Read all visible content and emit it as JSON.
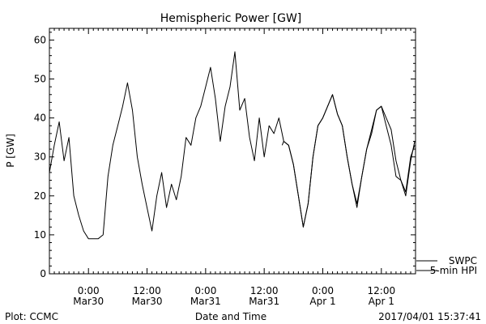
{
  "chart_data": {
    "type": "line",
    "title": "Hemispheric Power [GW]",
    "ylabel": "P [GW]",
    "xlabel": "Date and Time",
    "ylim": [
      0,
      63
    ],
    "yticks": [
      0,
      10,
      20,
      30,
      40,
      50,
      60
    ],
    "xlim": [
      "2017-03-29 16:00",
      "2017-04-01 19:00"
    ],
    "xticks": [
      {
        "t": "2017-03-30 00:00",
        "line1": "0:00",
        "line2": "Mar30"
      },
      {
        "t": "2017-03-30 12:00",
        "line1": "12:00",
        "line2": "Mar30"
      },
      {
        "t": "2017-03-31 00:00",
        "line1": "0:00",
        "line2": "Mar31"
      },
      {
        "t": "2017-03-31 12:00",
        "line1": "12:00",
        "line2": "Mar31"
      },
      {
        "t": "2017-04-01 00:00",
        "line1": "0:00",
        "line2": "Apr 1"
      },
      {
        "t": "2017-04-01 12:00",
        "line1": "12:00",
        "line2": "Apr 1"
      }
    ],
    "grid": false,
    "legend_position": "right",
    "series": [
      {
        "name": "SWPC",
        "style": "solid",
        "points": [
          [
            "2017-03-31 15:40",
            33
          ],
          [
            "2017-03-31 16:00",
            34
          ],
          [
            "2017-03-31 17:00",
            33
          ],
          [
            "2017-03-31 18:00",
            28
          ],
          [
            "2017-03-31 19:00",
            20
          ],
          [
            "2017-03-31 20:00",
            12
          ],
          [
            "2017-03-31 21:00",
            18
          ],
          [
            "2017-03-31 22:00",
            30
          ],
          [
            "2017-03-31 23:00",
            38
          ],
          [
            "2017-04-01 00:00",
            40
          ],
          [
            "2017-04-01 01:00",
            43
          ],
          [
            "2017-04-01 02:00",
            46
          ],
          [
            "2017-04-01 03:00",
            41
          ],
          [
            "2017-04-01 04:00",
            38
          ],
          [
            "2017-04-01 05:00",
            30
          ],
          [
            "2017-04-01 06:00",
            23
          ],
          [
            "2017-04-01 07:00",
            18
          ],
          [
            "2017-04-01 08:00",
            25
          ],
          [
            "2017-04-01 09:00",
            32
          ],
          [
            "2017-04-01 10:00",
            37
          ],
          [
            "2017-04-01 11:00",
            42
          ],
          [
            "2017-04-01 12:00",
            43
          ],
          [
            "2017-04-01 13:00",
            40
          ],
          [
            "2017-04-01 14:00",
            37
          ],
          [
            "2017-04-01 15:00",
            29
          ],
          [
            "2017-04-01 16:00",
            24
          ],
          [
            "2017-04-01 17:00",
            21
          ],
          [
            "2017-04-01 18:00",
            30
          ],
          [
            "2017-04-01 18:50",
            33
          ]
        ]
      },
      {
        "name": "5-min HPI",
        "style": "solid",
        "points": [
          [
            "2017-03-29 16:00",
            26
          ],
          [
            "2017-03-29 17:00",
            33
          ],
          [
            "2017-03-29 18:00",
            39
          ],
          [
            "2017-03-29 19:00",
            29
          ],
          [
            "2017-03-29 20:00",
            35
          ],
          [
            "2017-03-29 21:00",
            20
          ],
          [
            "2017-03-29 22:00",
            15
          ],
          [
            "2017-03-29 23:00",
            11
          ],
          [
            "2017-03-30 00:00",
            9
          ],
          [
            "2017-03-30 01:00",
            9
          ],
          [
            "2017-03-30 02:00",
            9
          ],
          [
            "2017-03-30 03:00",
            10
          ],
          [
            "2017-03-30 04:00",
            25
          ],
          [
            "2017-03-30 05:00",
            33
          ],
          [
            "2017-03-30 06:00",
            38
          ],
          [
            "2017-03-30 07:00",
            43
          ],
          [
            "2017-03-30 08:00",
            49
          ],
          [
            "2017-03-30 09:00",
            42
          ],
          [
            "2017-03-30 10:00",
            30
          ],
          [
            "2017-03-30 11:00",
            23
          ],
          [
            "2017-03-30 12:00",
            17
          ],
          [
            "2017-03-30 13:00",
            11
          ],
          [
            "2017-03-30 14:00",
            20
          ],
          [
            "2017-03-30 15:00",
            26
          ],
          [
            "2017-03-30 16:00",
            17
          ],
          [
            "2017-03-30 17:00",
            23
          ],
          [
            "2017-03-30 18:00",
            19
          ],
          [
            "2017-03-30 19:00",
            25
          ],
          [
            "2017-03-30 20:00",
            35
          ],
          [
            "2017-03-30 21:00",
            33
          ],
          [
            "2017-03-30 22:00",
            40
          ],
          [
            "2017-03-30 23:00",
            43
          ],
          [
            "2017-03-31 00:00",
            48
          ],
          [
            "2017-03-31 01:00",
            53
          ],
          [
            "2017-03-31 02:00",
            45
          ],
          [
            "2017-03-31 03:00",
            34
          ],
          [
            "2017-03-31 04:00",
            43
          ],
          [
            "2017-03-31 05:00",
            48
          ],
          [
            "2017-03-31 06:00",
            57
          ],
          [
            "2017-03-31 07:00",
            42
          ],
          [
            "2017-03-31 08:00",
            45
          ],
          [
            "2017-03-31 09:00",
            35
          ],
          [
            "2017-03-31 10:00",
            29
          ],
          [
            "2017-03-31 11:00",
            40
          ],
          [
            "2017-03-31 12:00",
            30
          ],
          [
            "2017-03-31 13:00",
            38
          ],
          [
            "2017-03-31 14:00",
            36
          ],
          [
            "2017-03-31 15:00",
            40
          ],
          [
            "2017-03-31 16:00",
            34
          ],
          [
            "2017-03-31 17:00",
            33
          ],
          [
            "2017-03-31 18:00",
            28
          ],
          [
            "2017-03-31 19:00",
            20
          ],
          [
            "2017-03-31 20:00",
            12
          ],
          [
            "2017-03-31 21:00",
            18
          ],
          [
            "2017-03-31 22:00",
            30
          ],
          [
            "2017-03-31 23:00",
            38
          ],
          [
            "2017-04-01 00:00",
            40
          ],
          [
            "2017-04-01 01:00",
            43
          ],
          [
            "2017-04-01 02:00",
            46
          ],
          [
            "2017-04-01 03:00",
            41
          ],
          [
            "2017-04-01 04:00",
            38
          ],
          [
            "2017-04-01 05:00",
            30
          ],
          [
            "2017-04-01 06:00",
            23
          ],
          [
            "2017-04-01 07:00",
            17
          ],
          [
            "2017-04-01 08:00",
            25
          ],
          [
            "2017-04-01 09:00",
            32
          ],
          [
            "2017-04-01 10:00",
            36
          ],
          [
            "2017-04-01 11:00",
            42
          ],
          [
            "2017-04-01 12:00",
            43
          ],
          [
            "2017-04-01 13:00",
            38
          ],
          [
            "2017-04-01 14:00",
            33
          ],
          [
            "2017-04-01 15:00",
            25
          ],
          [
            "2017-04-01 16:00",
            24
          ],
          [
            "2017-04-01 17:00",
            20
          ],
          [
            "2017-04-01 18:00",
            29
          ],
          [
            "2017-04-01 18:50",
            34
          ]
        ]
      }
    ]
  },
  "footer": {
    "left": "Plot: CCMC",
    "timestamp": "2017/04/01  15:37:41"
  }
}
